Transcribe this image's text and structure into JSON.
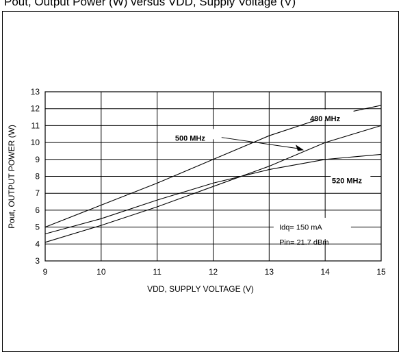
{
  "caption": "Pout, Output Power (W) versus VDD, Supply Voltage (V)",
  "chart_data": {
    "type": "line",
    "xlabel": "VDD, SUPPLY VOLTAGE (V)",
    "ylabel": "Pout, OUTPUT POWER (W)",
    "xlim": [
      9,
      15
    ],
    "ylim": [
      3,
      13
    ],
    "xticks": [
      9,
      10,
      11,
      12,
      13,
      14,
      15
    ],
    "yticks": [
      3,
      4,
      5,
      6,
      7,
      8,
      9,
      10,
      11,
      12,
      13
    ],
    "grid": true,
    "series": [
      {
        "name": "480 MHz",
        "x": [
          9,
          10,
          11,
          12,
          13,
          14,
          15
        ],
        "values": [
          5.0,
          6.3,
          7.6,
          9.0,
          10.4,
          11.5,
          12.2
        ]
      },
      {
        "name": "500 MHz",
        "x": [
          9,
          10,
          11,
          12,
          13,
          14,
          15
        ],
        "values": [
          4.1,
          5.1,
          6.2,
          7.4,
          8.6,
          10.0,
          11.0
        ]
      },
      {
        "name": "520 MHz",
        "x": [
          9,
          10,
          11,
          12,
          13,
          14,
          15
        ],
        "values": [
          4.6,
          5.5,
          6.6,
          7.6,
          8.4,
          9.0,
          9.3
        ]
      }
    ],
    "annotations": [
      "Idq= 150 mA",
      "Pin= 21.7 dBm"
    ]
  }
}
